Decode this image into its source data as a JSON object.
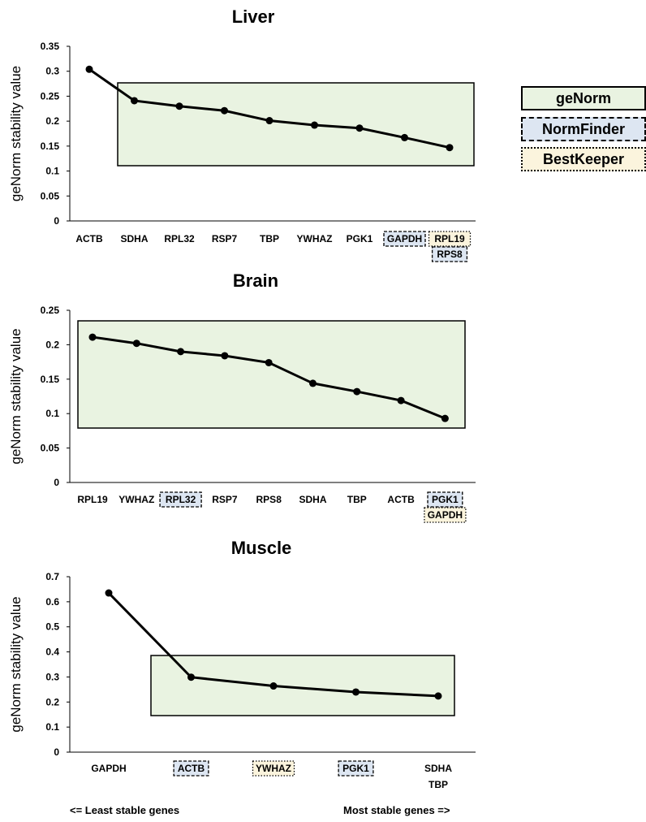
{
  "legend": {
    "genorm": "geNorm",
    "normfinder": "NormFinder",
    "bestkeeper": "BestKeeper"
  },
  "colors": {
    "genorm_fill": "#e9f3e1",
    "normfinder_fill": "#dde6f2",
    "bestkeeper_fill": "#fbf4dd",
    "line": "#000000"
  },
  "footer": {
    "left": "<= Least stable genes",
    "right": "Most stable genes =>"
  },
  "chart_data": [
    {
      "type": "line",
      "title": "Liver",
      "ylabel": "geNorm stability value",
      "xlabel": "",
      "ylim": [
        0,
        0.35
      ],
      "yticks": [
        "0",
        "0.05",
        "0.1",
        "0.15",
        "0.2",
        "0.25",
        "0.3",
        "0.35"
      ],
      "categories": [
        "ACTB",
        "SDHA",
        "RPL32",
        "RSP7",
        "TBP",
        "YWHAZ",
        "PGK1",
        "GAPDH",
        "RPL19"
      ],
      "extra_labels": [
        {
          "category": "RPL19",
          "text": "RPS8",
          "method": "NormFinder"
        }
      ],
      "values": [
        0.304,
        0.241,
        0.23,
        0.221,
        0.201,
        0.192,
        0.186,
        0.167,
        0.147
      ],
      "label_highlight": {
        "GAPDH": "NormFinder",
        "RPL19": "BestKeeper"
      },
      "genorm_selection": [
        "SDHA",
        "RPL32",
        "RSP7",
        "TBP",
        "YWHAZ",
        "PGK1",
        "GAPDH",
        "RPL19"
      ],
      "grid": false
    },
    {
      "type": "line",
      "title": "Brain",
      "ylabel": "geNorm stability value",
      "xlabel": "",
      "ylim": [
        0,
        0.25
      ],
      "yticks": [
        "0",
        "0.05",
        "0.1",
        "0.15",
        "0.2",
        "0.25"
      ],
      "categories": [
        "RPL19",
        "YWHAZ",
        "RPL32",
        "RSP7",
        "RPS8",
        "SDHA",
        "TBP",
        "ACTB",
        "PGK1"
      ],
      "extra_labels": [
        {
          "category": "PGK1",
          "text": "GAPDH",
          "method": "BestKeeper"
        }
      ],
      "values": [
        0.211,
        0.202,
        0.19,
        0.184,
        0.174,
        0.144,
        0.132,
        0.119,
        0.093
      ],
      "label_highlight": {
        "RPL32": "NormFinder",
        "PGK1": "NormFinder"
      },
      "genorm_selection": [
        "RPL19",
        "YWHAZ",
        "RPL32",
        "RSP7",
        "RPS8",
        "SDHA",
        "TBP",
        "ACTB",
        "PGK1"
      ],
      "grid": false
    },
    {
      "type": "line",
      "title": "Muscle",
      "ylabel": "geNorm stability value",
      "xlabel": "",
      "ylim": [
        0,
        0.7
      ],
      "yticks": [
        "0",
        "0.1",
        "0.2",
        "0.3",
        "0.4",
        "0.5",
        "0.6",
        "0.7"
      ],
      "categories": [
        "GAPDH",
        "ACTB",
        "YWHAZ",
        "PGK1",
        "SDHA"
      ],
      "extra_labels": [
        {
          "category": "SDHA",
          "text": "TBP",
          "method": ""
        }
      ],
      "values": [
        0.635,
        0.299,
        0.264,
        0.24,
        0.224
      ],
      "label_highlight": {
        "ACTB": "NormFinder",
        "YWHAZ": "BestKeeper",
        "PGK1": "NormFinder"
      },
      "genorm_selection": [
        "ACTB",
        "YWHAZ",
        "PGK1",
        "SDHA"
      ],
      "grid": false
    }
  ]
}
